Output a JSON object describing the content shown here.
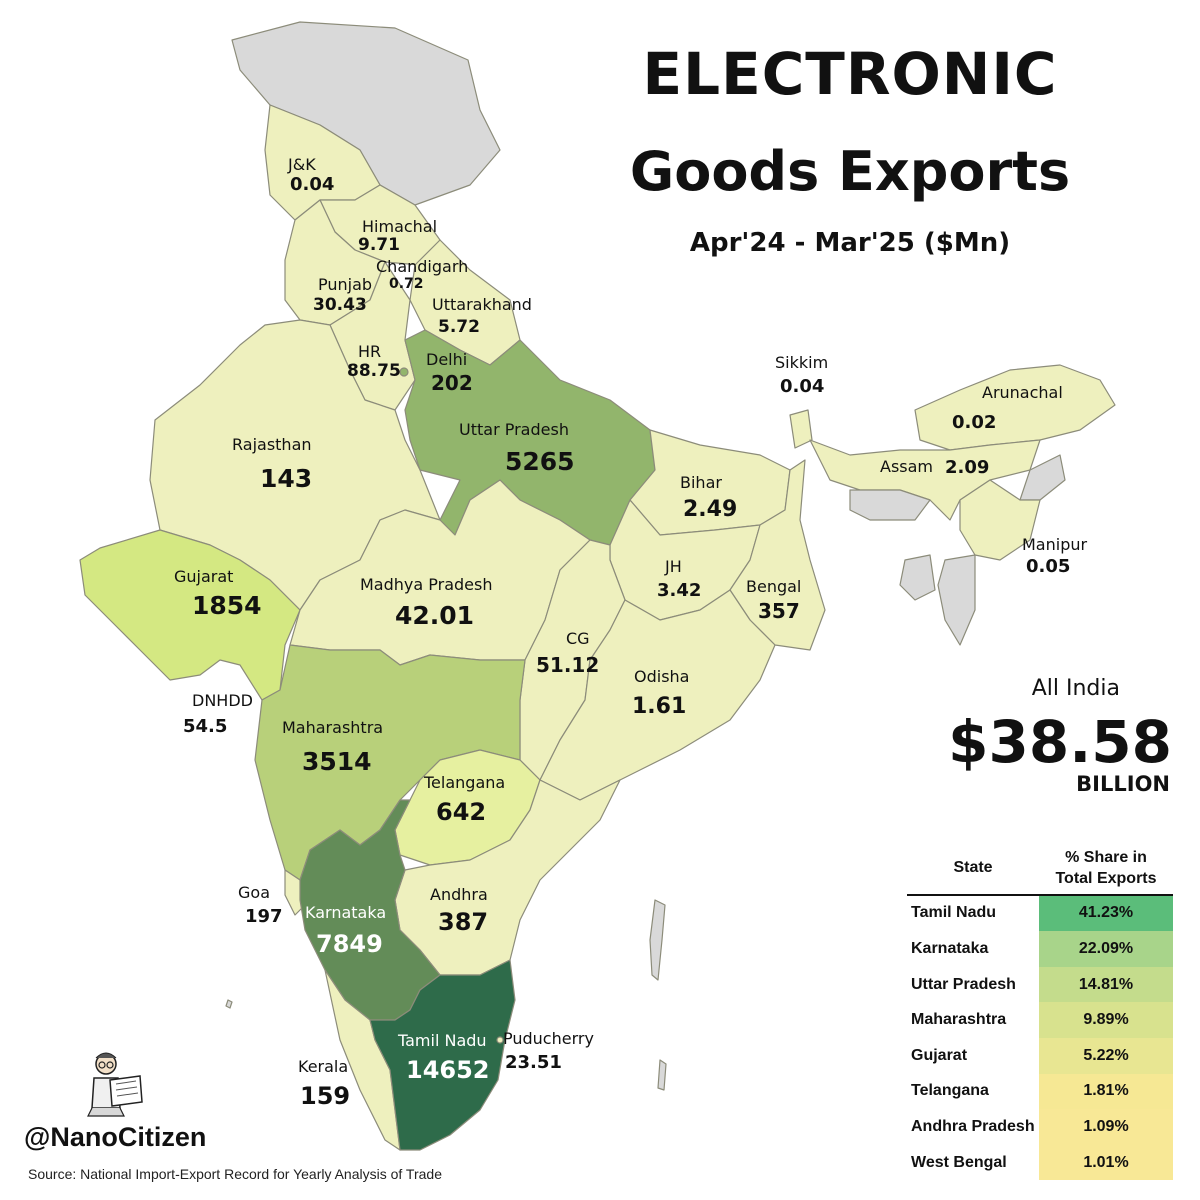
{
  "header": {
    "title_line1": "ELECTRONIC",
    "title_line2": "Goods Exports",
    "subtitle": "Apr'24 - Mar'25 ($Mn)"
  },
  "colors": {
    "very_light": "#eef0be",
    "light": "#e6f0a0",
    "gujarat": "#d4e882",
    "maharashtra": "#b8d07a",
    "uttar_pradesh": "#92b56c",
    "karnataka": "#638c58",
    "tamil_nadu": "#2e6b4a",
    "grey_region": "#d9d9d9",
    "border": "#8c8c7a"
  },
  "regions": [
    {
      "name": "J&K",
      "value": "0.04"
    },
    {
      "name": "Himachal",
      "value": "9.71"
    },
    {
      "name": "Chandigarh",
      "value": "0.72"
    },
    {
      "name": "Punjab",
      "value": "30.43"
    },
    {
      "name": "Uttarakhand",
      "value": "5.72"
    },
    {
      "name": "HR",
      "value": "88.75"
    },
    {
      "name": "Delhi",
      "value": "202"
    },
    {
      "name": "Uttar Pradesh",
      "value": "5265"
    },
    {
      "name": "Rajasthan",
      "value": "143"
    },
    {
      "name": "Sikkim",
      "value": "0.04"
    },
    {
      "name": "Arunachal",
      "value": "0.02"
    },
    {
      "name": "Assam",
      "value": "2.09"
    },
    {
      "name": "Bihar",
      "value": "2.49"
    },
    {
      "name": "Manipur",
      "value": "0.05"
    },
    {
      "name": "Gujarat",
      "value": "1854"
    },
    {
      "name": "Madhya Pradesh",
      "value": "42.01"
    },
    {
      "name": "JH",
      "value": "3.42"
    },
    {
      "name": "Bengal",
      "value": "357"
    },
    {
      "name": "CG",
      "value": "51.12"
    },
    {
      "name": "Odisha",
      "value": "1.61"
    },
    {
      "name": "DNHDD",
      "value": "54.5"
    },
    {
      "name": "Maharashtra",
      "value": "3514"
    },
    {
      "name": "Telangana",
      "value": "642"
    },
    {
      "name": "Goa",
      "value": "197"
    },
    {
      "name": "Andhra",
      "value": "387"
    },
    {
      "name": "Karnataka",
      "value": "7849"
    },
    {
      "name": "Puducherry",
      "value": "23.51"
    },
    {
      "name": "Tamil Nadu",
      "value": "14652"
    },
    {
      "name": "Kerala",
      "value": "159"
    }
  ],
  "all_india": {
    "label": "All India",
    "value": "$38.58",
    "unit": "BILLION"
  },
  "share_table": {
    "headers": [
      "State",
      "% Share in Total Exports"
    ],
    "header_line1": "% Share in",
    "header_line2": "Total Exports",
    "rows": [
      {
        "state": "Tamil Nadu",
        "share": "41.23%",
        "color": "#5bbd7a"
      },
      {
        "state": "Karnataka",
        "share": "22.09%",
        "color": "#a8d48a"
      },
      {
        "state": "Uttar Pradesh",
        "share": "14.81%",
        "color": "#c4dc8c"
      },
      {
        "state": "Maharashtra",
        "share": "9.89%",
        "color": "#d8e28e"
      },
      {
        "state": "Gujarat",
        "share": "5.22%",
        "color": "#e8e692"
      },
      {
        "state": "Telangana",
        "share": "1.81%",
        "color": "#f6e894"
      },
      {
        "state": "Andhra Pradesh",
        "share": "1.09%",
        "color": "#f8e896"
      },
      {
        "state": "West Bengal",
        "share": "1.01%",
        "color": "#f8e896"
      }
    ]
  },
  "footer": {
    "handle": "@NanoCitizen",
    "source": "Source: National Import-Export Record for Yearly Analysis of Trade"
  }
}
